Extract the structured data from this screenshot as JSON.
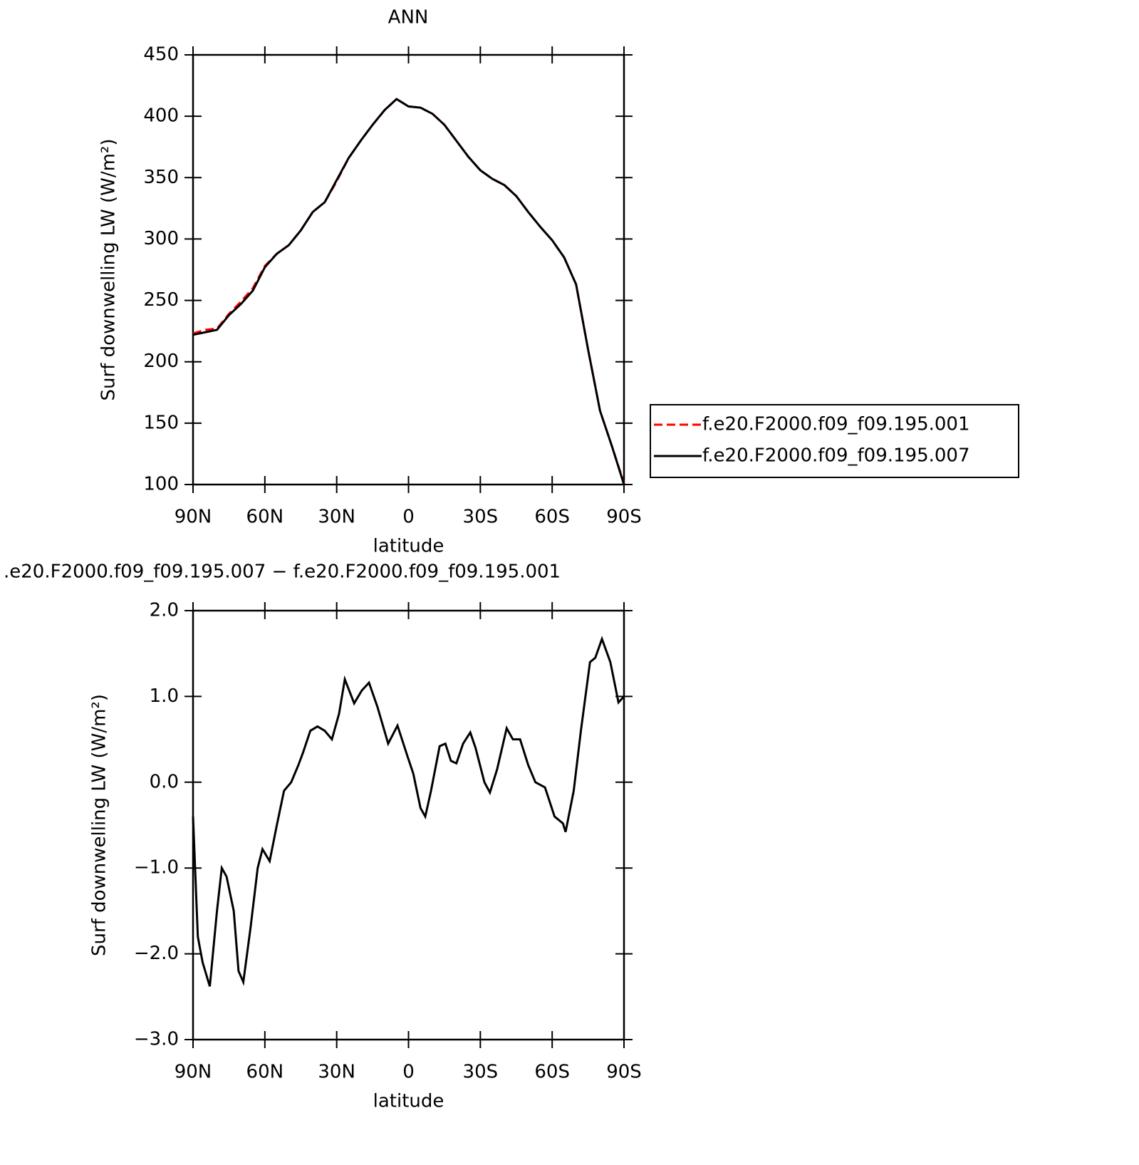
{
  "chart_data": [
    {
      "type": "line",
      "title": "ANN",
      "x_label": "latitude",
      "y_label": "Surf downwelling LW (W/m²)",
      "x": [
        90,
        85,
        80,
        75,
        70,
        65,
        60,
        55,
        50,
        45,
        40,
        35,
        30,
        25,
        20,
        15,
        10,
        5,
        0,
        -5,
        -10,
        -15,
        -20,
        -25,
        -30,
        -35,
        -40,
        -45,
        -50,
        -55,
        -60,
        -65,
        -70,
        -75,
        -80,
        -85,
        -90
      ],
      "series": [
        {
          "name": "f.e20.F2000.f09_f09.195.001",
          "color": "#ff0000",
          "dash": true,
          "values": [
            223,
            226,
            227,
            239,
            249,
            260,
            278,
            288,
            295,
            307,
            322,
            330,
            347,
            366,
            380,
            393,
            405,
            414,
            408,
            407,
            402,
            393,
            380,
            367,
            356,
            349,
            344,
            335,
            322,
            310,
            299,
            285,
            263,
            210,
            160,
            131,
            101
          ]
        },
        {
          "name": "f.e20.F2000.f09_f09.195.007",
          "color": "#000000",
          "dash": false,
          "values": [
            222,
            224,
            226,
            238,
            247,
            258,
            277,
            288,
            295,
            307,
            322,
            330,
            348,
            366,
            380,
            393,
            405,
            414,
            408,
            407,
            402,
            393,
            380,
            367,
            356,
            349,
            344,
            335,
            322,
            310,
            299,
            285,
            263,
            210,
            160,
            131,
            100
          ]
        }
      ],
      "xlim": [
        90,
        -90
      ],
      "xticks": [
        {
          "value": 90,
          "label": "90N"
        },
        {
          "value": 60,
          "label": "60N"
        },
        {
          "value": 30,
          "label": "30N"
        },
        0,
        {
          "value": -30,
          "label": "30S"
        },
        {
          "value": -60,
          "label": "60S"
        },
        {
          "value": -90,
          "label": "90S"
        }
      ],
      "ylim": [
        100,
        450
      ],
      "yticks": [
        100,
        150,
        200,
        250,
        300,
        350,
        400,
        450
      ],
      "legend": "right"
    },
    {
      "type": "line",
      "title": ".e20.F2000.f09_f09.195.007 − f.e20.F2000.f09_f09.195.001",
      "x_label": "latitude",
      "y_label": "Surf downwelling LW (W/m²)",
      "x": [
        90,
        88,
        86,
        83,
        80,
        78,
        76,
        73,
        71,
        69,
        66,
        63,
        61,
        58,
        55,
        52,
        49,
        46,
        44,
        41,
        38,
        35,
        32,
        29,
        26.6,
        22.7,
        19.5,
        16.5,
        13,
        8.5,
        4.6,
        0.4,
        -2,
        -5,
        -7,
        -9.4,
        -13,
        -15.4,
        -17.7,
        -20,
        -22.8,
        -25.8,
        -28,
        -31.7,
        -34,
        -37,
        -41,
        -43.6,
        -46.6,
        -50,
        -53,
        -57,
        -61,
        -64.5,
        -65.6,
        -69,
        -72,
        -75.8,
        -78,
        -80.8,
        -84.3,
        -87.7,
        -90
      ],
      "series": [
        {
          "name": "difference",
          "color": "#000000",
          "dash": false,
          "values": [
            -0.4,
            -1.8,
            -2.1,
            -2.38,
            -1.5,
            -1.0,
            -1.1,
            -1.5,
            -2.2,
            -2.33,
            -1.7,
            -1.0,
            -0.78,
            -0.92,
            -0.5,
            -0.1,
            0.0,
            0.2,
            0.35,
            0.6,
            0.65,
            0.6,
            0.5,
            0.8,
            1.2,
            0.92,
            1.07,
            1.16,
            0.88,
            0.45,
            0.66,
            0.3,
            0.1,
            -0.3,
            -0.4,
            -0.1,
            0.42,
            0.45,
            0.25,
            0.22,
            0.45,
            0.58,
            0.4,
            0.0,
            -0.12,
            0.15,
            0.63,
            0.5,
            0.5,
            0.2,
            0.0,
            -0.06,
            -0.4,
            -0.48,
            -0.58,
            -0.1,
            0.6,
            1.4,
            1.45,
            1.67,
            1.4,
            0.93,
            1.0
          ]
        }
      ],
      "xlim": [
        90,
        -90
      ],
      "xticks": [
        {
          "value": 90,
          "label": "90N"
        },
        {
          "value": 60,
          "label": "60N"
        },
        {
          "value": 30,
          "label": "30N"
        },
        0,
        {
          "value": -30,
          "label": "30S"
        },
        {
          "value": -60,
          "label": "60S"
        },
        {
          "value": -90,
          "label": "90S"
        }
      ],
      "ylim": [
        -3,
        2
      ],
      "yticks": [
        {
          "value": -3,
          "label": "−3.0"
        },
        {
          "value": -2,
          "label": "−2.0"
        },
        {
          "value": -1,
          "label": "−1.0"
        },
        {
          "value": 0,
          "label": "0.0"
        },
        {
          "value": 1,
          "label": "1.0"
        },
        {
          "value": 2,
          "label": "2.0"
        }
      ]
    }
  ]
}
